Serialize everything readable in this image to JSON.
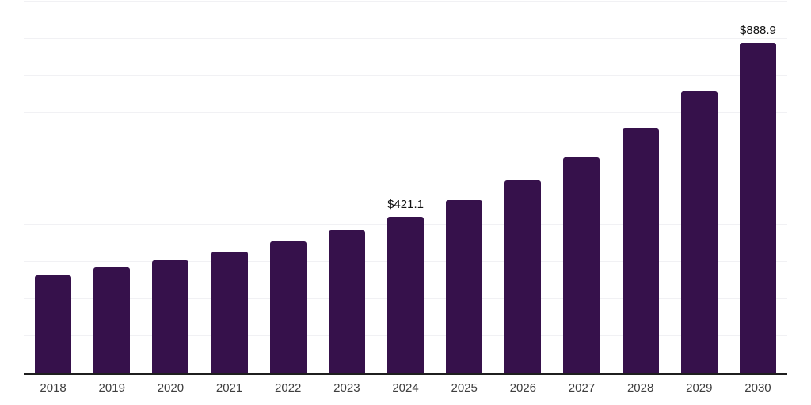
{
  "chart_data": {
    "type": "bar",
    "categories": [
      "2018",
      "2019",
      "2020",
      "2021",
      "2022",
      "2023",
      "2024",
      "2025",
      "2026",
      "2027",
      "2028",
      "2029",
      "2030"
    ],
    "values": [
      263.1,
      285.1,
      304.8,
      328.7,
      356.2,
      385.2,
      421.1,
      465.6,
      519.2,
      582.0,
      660.3,
      760.4,
      888.9
    ],
    "value_labels": {
      "2024": "$421.1",
      "2030": "$888.9"
    },
    "currency_prefix": "$",
    "ylim": [
      0,
      1000
    ],
    "grid_step": 100,
    "grid_on": true,
    "legend": "none"
  },
  "colors": {
    "bar": "#36114B",
    "axis": "#1F1F1F",
    "gridline": "#F1F1F4",
    "tick_label": "#3E3E3E",
    "value_label": "#111111",
    "background": "#FFFFFF"
  }
}
